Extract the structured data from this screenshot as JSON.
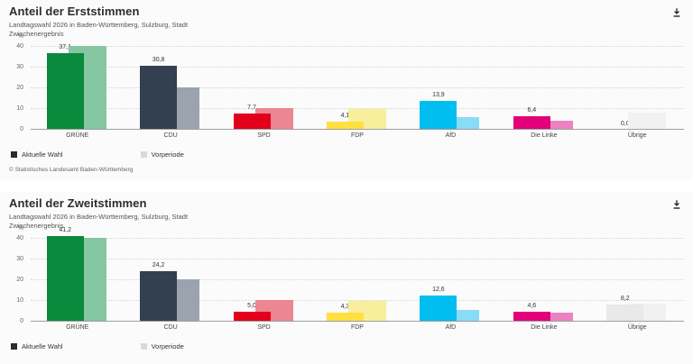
{
  "icons": {
    "download": "arrow-down-to-tray"
  },
  "legend_swatches": {
    "current": "#2b2b2b",
    "previous": "#d9d9d9"
  },
  "chart_data": [
    {
      "type": "bar",
      "title": "Anteil der Erststimmen",
      "subtitle": "Landtagswahl 2026 in Baden-Württemberg, Sulzburg, Stadt",
      "status_line": "Zwischenergebnis",
      "ylabel": "%",
      "yticks": [
        0,
        10,
        20,
        30,
        40
      ],
      "ylim": [
        0,
        40
      ],
      "grid": "dotted-horizontal",
      "legend_position": "bottom",
      "categories": [
        "GRÜNE",
        "CDU",
        "SPD",
        "FDP",
        "AfD",
        "Die Linke",
        "Übrige"
      ],
      "series": [
        {
          "name": "Aktuelle Wahl",
          "values": [
            37.1,
            30.8,
            7.7,
            4.1,
            13.9,
            6.4,
            0.0
          ],
          "labels": [
            "37,1",
            "30,8",
            "7,7",
            "4,1",
            "13,9",
            "6,4",
            "0,0"
          ]
        },
        {
          "name": "Vorperiode",
          "values": [
            40.5,
            20.5,
            10.3,
            9.8,
            6.2,
            4.5,
            8.3
          ]
        }
      ],
      "colors": {
        "current": [
          "#0a8a3c",
          "#32404f",
          "#e2001a",
          "#ffe03e",
          "#00bdf0",
          "#e2017b",
          "#e9e9e9"
        ],
        "previous": [
          "#85c7a0",
          "#9ba4ae",
          "#ec8691",
          "#f8ee9b",
          "#89dcf6",
          "#ec82c2",
          "#f1f1f1"
        ]
      },
      "source": "© Statistisches Landesamt Baden-Württemberg"
    },
    {
      "type": "bar",
      "title": "Anteil der Zweitstimmen",
      "subtitle": "Landtagswahl 2026 in Baden-Württemberg, Sulzburg, Stadt",
      "status_line": "Zwischenergebnis",
      "ylabel": "%",
      "yticks": [
        0,
        10,
        20,
        30,
        40
      ],
      "ylim": [
        0,
        40
      ],
      "grid": "dotted-horizontal",
      "legend_position": "bottom",
      "categories": [
        "GRÜNE",
        "CDU",
        "SPD",
        "FDP",
        "AfD",
        "Die Linke",
        "Übrige"
      ],
      "series": [
        {
          "name": "Aktuelle Wahl",
          "values": [
            41.2,
            24.2,
            5.0,
            4.3,
            12.6,
            4.6,
            8.2
          ],
          "labels": [
            "41,2",
            "24,2",
            "5,0",
            "4,3",
            "12,6",
            "4,6",
            "8,2"
          ]
        },
        {
          "name": "Vorperiode",
          "values": [
            40.3,
            20.5,
            10.4,
            9.9,
            5.8,
            4.5,
            8.5
          ]
        }
      ],
      "colors": {
        "current": [
          "#0a8a3c",
          "#32404f",
          "#e2001a",
          "#ffe03e",
          "#00bdf0",
          "#e2017b",
          "#e9e9e9"
        ],
        "previous": [
          "#85c7a0",
          "#9ba4ae",
          "#ec8691",
          "#f8ee9b",
          "#89dcf6",
          "#ec82c2",
          "#f1f1f1"
        ]
      }
    }
  ]
}
